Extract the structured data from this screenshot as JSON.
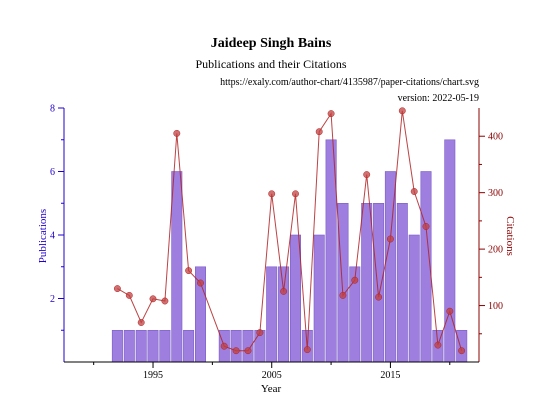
{
  "header": {
    "title": "Jaideep Singh Bains",
    "subtitle": "Publications and their Citations",
    "url": "https://exaly.com/author-chart/4135987/paper-citations/chart.svg",
    "version": "version: 2022-05-19"
  },
  "colors": {
    "bar_fill": "#9370DB",
    "bar_stroke": "#7B5CC8",
    "line": "#B22222",
    "point": "#C04040",
    "left_axis": "#2200CC",
    "right_axis": "#8B0000"
  },
  "chart_data": {
    "type": "bar",
    "x_label": "Year",
    "y_label_left": "Publications",
    "y_label_right": "Citations",
    "x_ticks": [
      1995,
      2005,
      2015
    ],
    "x_tick_labels": [
      "1995",
      "2005",
      "2015"
    ],
    "left_ticks": [
      2,
      4,
      6,
      8
    ],
    "left_tick_labels": [
      "2",
      "4",
      "6",
      "8"
    ],
    "right_ticks": [
      100,
      200,
      300,
      400
    ],
    "right_tick_labels": [
      "100",
      "200",
      "300",
      "400"
    ],
    "left_ylim": [
      0,
      8
    ],
    "right_ylim": [
      0,
      450
    ],
    "series": [
      {
        "name": "Publications",
        "kind": "bar",
        "axis": "left",
        "points": [
          {
            "x": 1992,
            "y": 1
          },
          {
            "x": 1993,
            "y": 1
          },
          {
            "x": 1994,
            "y": 1
          },
          {
            "x": 1995,
            "y": 1
          },
          {
            "x": 1996,
            "y": 1
          },
          {
            "x": 1997,
            "y": 6
          },
          {
            "x": 1998,
            "y": 1
          },
          {
            "x": 1999,
            "y": 3
          },
          {
            "x": 2001,
            "y": 1
          },
          {
            "x": 2002,
            "y": 1
          },
          {
            "x": 2003,
            "y": 1
          },
          {
            "x": 2004,
            "y": 1
          },
          {
            "x": 2005,
            "y": 3
          },
          {
            "x": 2006,
            "y": 3
          },
          {
            "x": 2007,
            "y": 4
          },
          {
            "x": 2008,
            "y": 1
          },
          {
            "x": 2009,
            "y": 4
          },
          {
            "x": 2010,
            "y": 7
          },
          {
            "x": 2011,
            "y": 5
          },
          {
            "x": 2012,
            "y": 3
          },
          {
            "x": 2013,
            "y": 5
          },
          {
            "x": 2014,
            "y": 5
          },
          {
            "x": 2015,
            "y": 6
          },
          {
            "x": 2016,
            "y": 5
          },
          {
            "x": 2017,
            "y": 4
          },
          {
            "x": 2018,
            "y": 6
          },
          {
            "x": 2019,
            "y": 1
          },
          {
            "x": 2020,
            "y": 7
          },
          {
            "x": 2021,
            "y": 1
          }
        ]
      },
      {
        "name": "Citations",
        "kind": "line",
        "axis": "right",
        "points": [
          {
            "x": 1992,
            "y": 130
          },
          {
            "x": 1993,
            "y": 118
          },
          {
            "x": 1994,
            "y": 70
          },
          {
            "x": 1995,
            "y": 112
          },
          {
            "x": 1996,
            "y": 108
          },
          {
            "x": 1997,
            "y": 405
          },
          {
            "x": 1998,
            "y": 162
          },
          {
            "x": 1999,
            "y": 140
          },
          {
            "x": 2001,
            "y": 28
          },
          {
            "x": 2002,
            "y": 20
          },
          {
            "x": 2003,
            "y": 20
          },
          {
            "x": 2004,
            "y": 52
          },
          {
            "x": 2005,
            "y": 298
          },
          {
            "x": 2006,
            "y": 125
          },
          {
            "x": 2007,
            "y": 298
          },
          {
            "x": 2008,
            "y": 22
          },
          {
            "x": 2009,
            "y": 408
          },
          {
            "x": 2010,
            "y": 440
          },
          {
            "x": 2011,
            "y": 118
          },
          {
            "x": 2012,
            "y": 145
          },
          {
            "x": 2013,
            "y": 332
          },
          {
            "x": 2014,
            "y": 115
          },
          {
            "x": 2015,
            "y": 218
          },
          {
            "x": 2016,
            "y": 445
          },
          {
            "x": 2017,
            "y": 302
          },
          {
            "x": 2018,
            "y": 240
          },
          {
            "x": 2019,
            "y": 30
          },
          {
            "x": 2020,
            "y": 90
          },
          {
            "x": 2021,
            "y": 20
          }
        ]
      }
    ]
  }
}
